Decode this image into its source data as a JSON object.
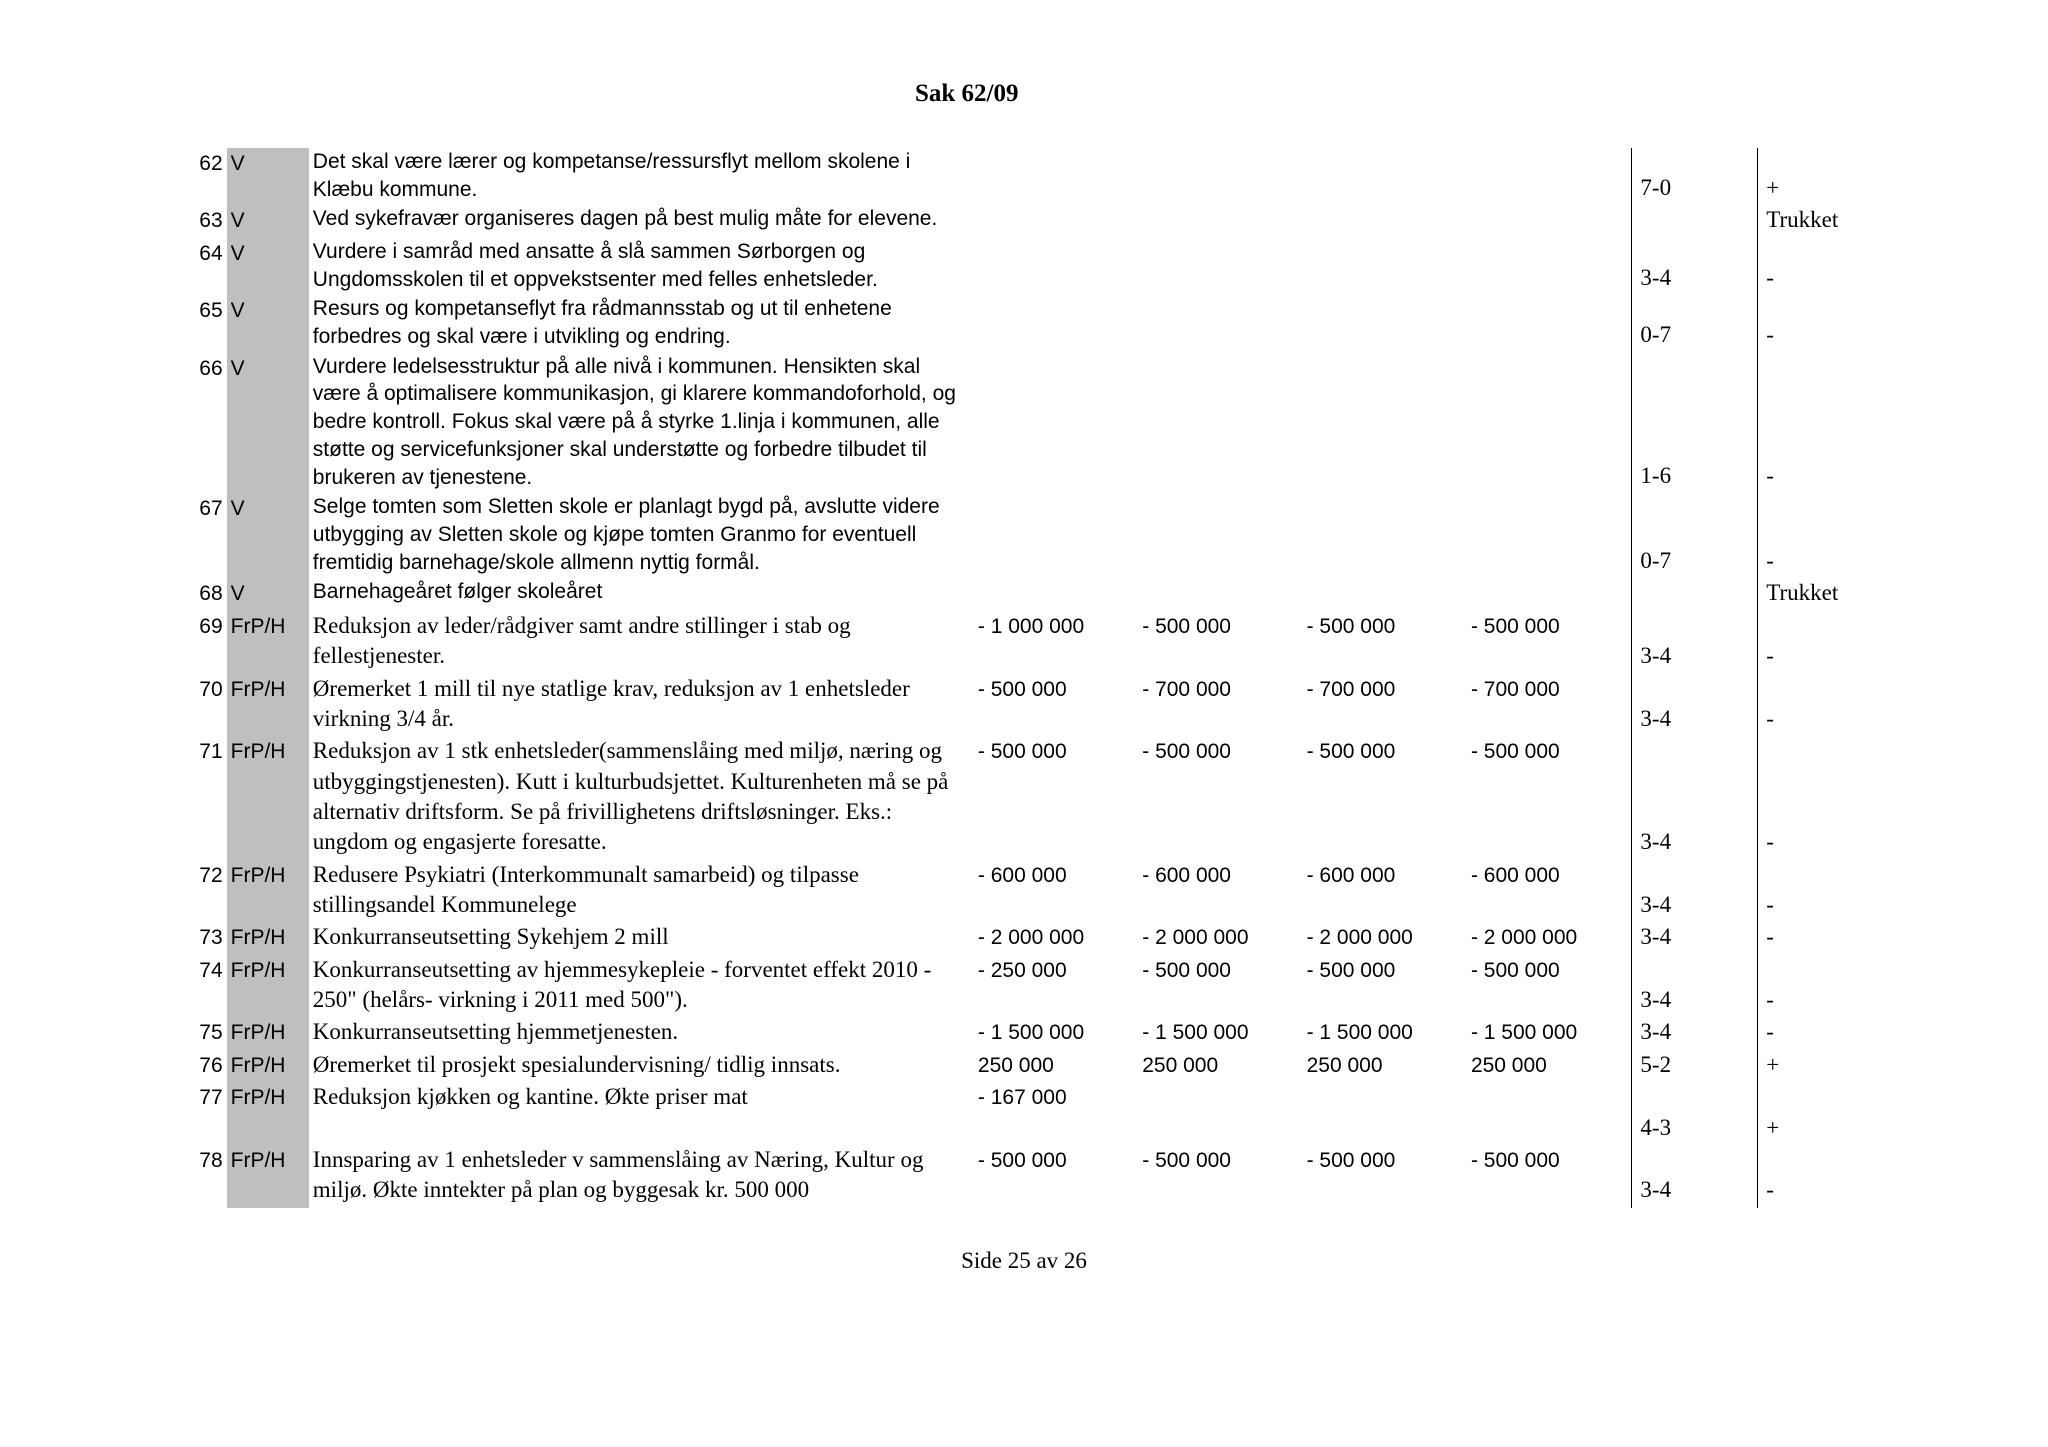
{
  "header": "Sak 62/09",
  "footer": "Side 25 av 26",
  "rows": [
    {
      "num": "62",
      "party": "V",
      "desc": "Det skal være lærer og kompetanse/ressursflyt mellom skolene i Klæbu kommune.",
      "a1": "",
      "a2": "",
      "a3": "",
      "a4": "",
      "vote": "7-0",
      "res": "+",
      "desc_font": "arial"
    },
    {
      "num": "63",
      "party": "V",
      "desc": "Ved sykefravær organiseres dagen på best mulig måte for elevene.",
      "a1": "",
      "a2": "",
      "a3": "",
      "a4": "",
      "vote": "",
      "res": "Trukket",
      "desc_font": "arial"
    },
    {
      "num": "64",
      "party": "V",
      "desc": "Vurdere i samråd med ansatte å slå sammen Sørborgen og Ungdomsskolen til et oppvekstsenter med felles enhetsleder.",
      "a1": "",
      "a2": "",
      "a3": "",
      "a4": "",
      "vote": "3-4",
      "res": "-",
      "desc_font": "arial"
    },
    {
      "num": "65",
      "party": "V",
      "desc": "Resurs og kompetanseflyt fra rådmannsstab og ut til enhetene forbedres og skal være i utvikling og endring.",
      "a1": "",
      "a2": "",
      "a3": "",
      "a4": "",
      "vote": "0-7",
      "res": "-",
      "desc_font": "arial"
    },
    {
      "num": "66",
      "party": "V",
      "desc": "Vurdere ledelsesstruktur på alle nivå i kommunen. Hensikten skal være å optimalisere kommunikasjon, gi klarere kommandoforhold, og bedre kontroll. Fokus skal være på å styrke 1.linja i kommunen, alle støtte og servicefunksjoner skal understøtte og forbedre tilbudet til brukeren av tjenestene.",
      "a1": "",
      "a2": "",
      "a3": "",
      "a4": "",
      "vote": "1-6",
      "res": "-",
      "desc_font": "arial"
    },
    {
      "num": "67",
      "party": "V",
      "desc": "Selge tomten som Sletten skole er planlagt bygd på, avslutte videre utbygging av Sletten skole og kjøpe tomten Granmo for eventuell fremtidig barnehage/skole allmenn nyttig formål.",
      "a1": "",
      "a2": "",
      "a3": "",
      "a4": "",
      "vote": "0-7",
      "res": "-",
      "desc_font": "arial"
    },
    {
      "num": "68",
      "party": "V",
      "desc": "Barnehageåret følger skoleåret",
      "a1": "",
      "a2": "",
      "a3": "",
      "a4": "",
      "vote": "",
      "res": "Trukket",
      "desc_font": "arial"
    },
    {
      "num": "69",
      "party": "FrP/H",
      "desc": "Reduksjon av leder/rådgiver samt andre stillinger i stab og fellestjenester.",
      "a1": "- 1 000 000",
      "a2": "- 500 000",
      "a3": "- 500 000",
      "a4": "- 500 000",
      "vote": "3-4",
      "res": "-",
      "desc_font": "times"
    },
    {
      "num": "70",
      "party": "FrP/H",
      "desc": "Øremerket 1 mill til nye statlige krav, reduksjon av 1 enhetsleder virkning 3/4 år.",
      "a1": "- 500 000",
      "a2": "- 700 000",
      "a3": "- 700 000",
      "a4": "- 700 000",
      "vote": "3-4",
      "res": "-",
      "desc_font": "times"
    },
    {
      "num": "71",
      "party": "FrP/H",
      "desc": "Reduksjon av 1 stk enhetsleder(sammenslåing med miljø, næring og utbyggingstjenesten).  Kutt i kulturbudsjettet. Kulturenheten må se på alternativ driftsform. Se på frivillighetens driftsløsninger. Eks.: ungdom og engasjerte foresatte.",
      "a1": "- 500 000",
      "a2": "- 500 000",
      "a3": "- 500 000",
      "a4": "- 500 000",
      "vote": "3-4",
      "res": "-",
      "desc_font": "times"
    },
    {
      "num": "72",
      "party": "FrP/H",
      "desc": "Redusere Psykiatri (Interkommunalt samarbeid) og tilpasse stillingsandel Kommunelege",
      "a1": "- 600 000",
      "a2": "- 600 000",
      "a3": "- 600 000",
      "a4": "- 600 000",
      "vote": "3-4",
      "res": "-",
      "desc_font": "times"
    },
    {
      "num": "73",
      "party": "FrP/H",
      "desc": "Konkurranseutsetting Sykehjem 2 mill",
      "a1": "- 2 000 000",
      "a2": "- 2 000 000",
      "a3": "- 2 000 000",
      "a4": "- 2 000 000",
      "vote": "3-4",
      "res": "-",
      "desc_font": "times"
    },
    {
      "num": "74",
      "party": "FrP/H",
      "desc": "Konkurranseutsetting av hjemmesykepleie - forventet effekt 2010 - 250\" (helårs- virkning i 2011 med 500\").",
      "a1": "- 250 000",
      "a2": "- 500 000",
      "a3": "- 500 000",
      "a4": "- 500 000",
      "vote": "3-4",
      "res": "-",
      "desc_font": "times"
    },
    {
      "num": "75",
      "party": "FrP/H",
      "desc": "Konkurranseutsetting hjemmetjenesten.",
      "a1": "- 1 500 000",
      "a2": "- 1 500 000",
      "a3": "- 1 500 000",
      "a4": "- 1 500 000",
      "vote": "3-4",
      "res": "-",
      "desc_font": "times"
    },
    {
      "num": "76",
      "party": "FrP/H",
      "desc": "Øremerket til prosjekt spesialundervisning/ tidlig innsats.",
      "a1": "250 000",
      "a2": "250 000",
      "a3": "250 000",
      "a4": "250 000",
      "vote": "5-2",
      "res": "+",
      "desc_font": "times"
    },
    {
      "num": "77",
      "party": "FrP/H",
      "desc": "Reduksjon kjøkken og kantine. Økte priser mat",
      "a1": "- 167 000",
      "a2": "",
      "a3": "",
      "a4": "",
      "vote": "4-3",
      "res": "+",
      "desc_font": "times",
      "extra_line": true
    },
    {
      "num": "78",
      "party": "FrP/H",
      "desc": "Innsparing av 1 enhetsleder v sammenslåing av Næring, Kultur og miljø. Økte inntekter på plan og byggesak kr. 500 000",
      "a1": "- 500 000",
      "a2": "- 500 000",
      "a3": "- 500 000",
      "a4": "- 500 000",
      "vote": "3-4",
      "res": "-",
      "desc_font": "times"
    }
  ]
}
